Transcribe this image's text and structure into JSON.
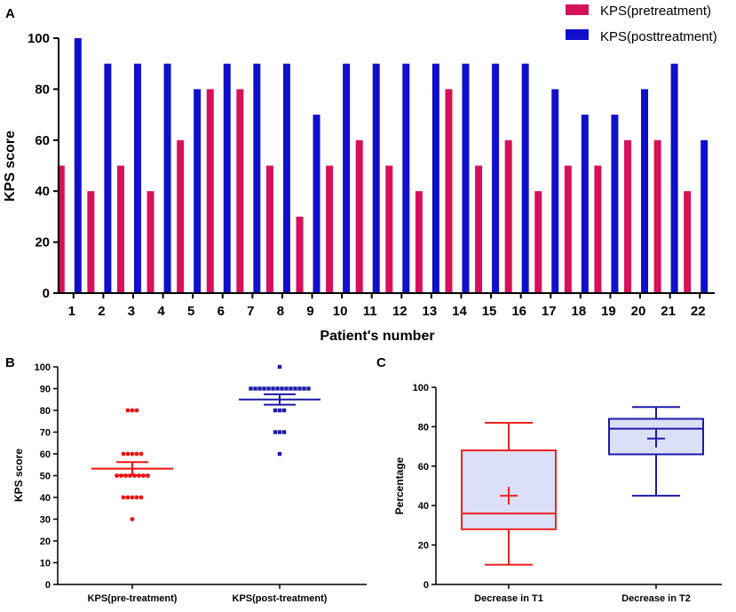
{
  "chart_data": [
    {
      "panel": "A",
      "type": "bar",
      "title": "",
      "xlabel": "Patient's number",
      "ylabel": "KPS score",
      "ylim": [
        0,
        100
      ],
      "yticks": [
        0,
        20,
        40,
        60,
        80,
        100
      ],
      "legend_position": "top-right",
      "categories": [
        "1",
        "2",
        "3",
        "4",
        "5",
        "6",
        "7",
        "8",
        "9",
        "10",
        "11",
        "12",
        "13",
        "14",
        "15",
        "16",
        "17",
        "18",
        "19",
        "20",
        "21",
        "22"
      ],
      "series": [
        {
          "name": "KPS(pretreatment)",
          "color": "#d6105a",
          "values": [
            50,
            40,
            50,
            40,
            60,
            80,
            80,
            50,
            30,
            50,
            60,
            50,
            40,
            80,
            50,
            60,
            40,
            50,
            50,
            60,
            60,
            40
          ]
        },
        {
          "name": "KPS(posttreatment)",
          "color": "#1010cc",
          "values": [
            100,
            90,
            90,
            90,
            80,
            90,
            90,
            90,
            70,
            90,
            90,
            90,
            90,
            90,
            90,
            90,
            80,
            70,
            70,
            80,
            90,
            60
          ]
        }
      ]
    },
    {
      "panel": "B",
      "type": "scatter",
      "title": "",
      "xlabel": "",
      "ylabel": "KPS score",
      "ylim": [
        0,
        100
      ],
      "yticks": [
        0,
        10,
        20,
        30,
        40,
        50,
        60,
        70,
        80,
        90,
        100
      ],
      "groups": [
        {
          "name": "KPS(pre-treatment)",
          "color": "#ee1111",
          "marker": "circle",
          "values": [
            50,
            40,
            50,
            40,
            60,
            80,
            80,
            50,
            30,
            50,
            60,
            50,
            40,
            80,
            50,
            60,
            40,
            50,
            50,
            60,
            60,
            40
          ],
          "mean": 53.2,
          "sem_low": 50.2,
          "sem_high": 56.2
        },
        {
          "name": "KPS(post-treatment)",
          "color": "#1a1aaa",
          "marker": "square",
          "values": [
            100,
            90,
            90,
            90,
            80,
            90,
            90,
            90,
            70,
            90,
            90,
            90,
            90,
            90,
            90,
            90,
            80,
            70,
            70,
            80,
            90,
            60
          ],
          "mean": 85.0,
          "sem_low": 82.6,
          "sem_high": 87.4
        }
      ]
    },
    {
      "panel": "C",
      "type": "box",
      "title": "",
      "xlabel": "",
      "ylabel": "Percentage",
      "ylim": [
        0,
        100
      ],
      "yticks": [
        0,
        20,
        40,
        60,
        80,
        100
      ],
      "boxes": [
        {
          "name": "Decrease in T1",
          "color": "#ee2222",
          "min": 10,
          "q1": 28,
          "median": 36,
          "q3": 68,
          "max": 82,
          "mean": 45
        },
        {
          "name": "Decrease in T2",
          "color": "#1a1aaa",
          "min": 45,
          "q1": 66,
          "median": 79,
          "q3": 84,
          "max": 90,
          "mean": 74
        }
      ]
    }
  ]
}
